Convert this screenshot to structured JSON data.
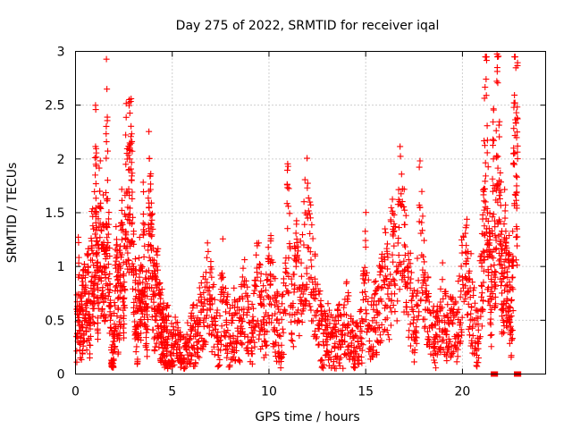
{
  "chart_data": {
    "type": "scatter",
    "title": "Day 275 of 2022, SRMTID for receiver iqal",
    "xlabel": "GPS time / hours",
    "ylabel": "SRMTID / TECUs",
    "xlim": [
      0,
      24.3
    ],
    "ylim": [
      0,
      3
    ],
    "xticks": [
      0,
      5,
      10,
      15,
      20
    ],
    "xtick_labels": [
      "0",
      "5",
      "10",
      "15",
      "20"
    ],
    "yticks": [
      0,
      0.5,
      1,
      1.5,
      2,
      2.5,
      3
    ],
    "ytick_labels": [
      "0",
      "0.5",
      "1",
      "1.5",
      "2",
      "2.5",
      "3"
    ],
    "grid": true,
    "marker": "+",
    "color": "#ff0000",
    "series": [
      {
        "name": "SRMTID",
        "x": [
          0.05,
          0.15,
          0.25,
          0.35,
          0.45,
          0.55,
          0.65,
          0.75,
          0.85,
          0.95,
          1.05,
          1.1,
          1.15,
          1.25,
          1.35,
          1.45,
          1.55,
          1.6,
          1.7,
          1.8,
          1.9,
          2.0,
          2.1,
          2.2,
          2.3,
          2.4,
          2.5,
          2.6,
          2.7,
          2.8,
          2.9,
          3.0,
          3.1,
          3.2,
          3.3,
          3.4,
          3.5,
          3.6,
          3.7,
          3.8,
          3.9,
          4.0,
          4.1,
          4.2,
          4.3,
          4.4,
          4.5,
          4.6,
          4.7,
          4.8,
          5.0,
          5.2,
          5.4,
          5.6,
          5.8,
          6.0,
          6.2,
          6.4,
          6.6,
          6.8,
          7.0,
          7.2,
          7.4,
          7.6,
          7.8,
          8.0,
          8.2,
          8.4,
          8.6,
          8.8,
          9.0,
          9.2,
          9.4,
          9.6,
          9.8,
          10.0,
          10.2,
          10.4,
          10.6,
          10.8,
          11.0,
          11.2,
          11.4,
          11.6,
          11.8,
          12.0,
          12.2,
          12.4,
          12.6,
          12.8,
          13.0,
          13.2,
          13.4,
          13.6,
          13.8,
          14.0,
          14.2,
          14.4,
          14.6,
          14.8,
          15.0,
          15.2,
          15.4,
          15.6,
          15.8,
          16.0,
          16.2,
          16.4,
          16.6,
          16.8,
          17.0,
          17.2,
          17.4,
          17.6,
          17.8,
          18.0,
          18.2,
          18.4,
          18.6,
          18.8,
          19.0,
          19.2,
          19.4,
          19.6,
          19.8,
          20.0,
          20.2,
          20.4,
          20.6,
          20.8,
          21.0,
          21.1,
          21.2,
          21.3,
          21.4,
          21.5,
          21.6,
          21.7,
          21.8,
          21.9,
          22.0,
          22.1,
          22.2,
          22.3,
          22.4,
          22.5,
          22.6,
          22.7,
          22.8,
          22.85
        ],
        "y": [
          0.35,
          0.9,
          0.4,
          0.6,
          0.75,
          0.5,
          1.0,
          0.45,
          1.15,
          0.9,
          1.95,
          1.1,
          0.8,
          1.7,
          0.95,
          1.2,
          0.7,
          2.16,
          1.3,
          0.5,
          0.1,
          0.35,
          1.05,
          0.6,
          0.9,
          1.25,
          0.7,
          1.95,
          1.55,
          2.0,
          1.8,
          1.0,
          0.7,
          0.45,
          0.9,
          0.6,
          1.3,
          0.8,
          0.55,
          1.7,
          1.4,
          0.9,
          0.6,
          0.8,
          0.75,
          0.45,
          0.5,
          0.3,
          0.4,
          0.35,
          0.25,
          0.3,
          0.2,
          0.15,
          0.3,
          0.4,
          0.35,
          0.5,
          0.6,
          0.85,
          0.7,
          0.45,
          0.3,
          0.9,
          0.5,
          0.35,
          0.55,
          0.4,
          0.6,
          0.75,
          0.3,
          0.5,
          0.9,
          0.65,
          0.4,
          1.1,
          0.7,
          0.5,
          0.35,
          0.6,
          1.56,
          0.55,
          1.0,
          0.8,
          1.2,
          1.45,
          1.0,
          0.7,
          0.5,
          0.3,
          0.45,
          0.35,
          0.25,
          0.4,
          0.3,
          0.55,
          0.35,
          0.25,
          0.3,
          0.4,
          1.18,
          0.45,
          0.6,
          0.55,
          0.8,
          1.0,
          0.7,
          1.3,
          1.0,
          1.58,
          1.2,
          0.9,
          0.6,
          0.4,
          1.55,
          0.9,
          0.6,
          0.45,
          0.3,
          0.5,
          0.7,
          0.4,
          0.5,
          0.35,
          0.6,
          0.9,
          1.05,
          0.8,
          0.5,
          0.3,
          1.0,
          1.3,
          2.95,
          1.5,
          1.1,
          0.6,
          2.0,
          0.9,
          2.85,
          1.8,
          1.2,
          0.5,
          1.45,
          0.7,
          1.0,
          0.4,
          0.9,
          2.52,
          1.75,
          2.12
        ],
        "baseline_x": [
          21.6,
          21.7,
          22.8,
          22.9
        ],
        "baseline_y": [
          0,
          0,
          0,
          0
        ]
      }
    ]
  }
}
